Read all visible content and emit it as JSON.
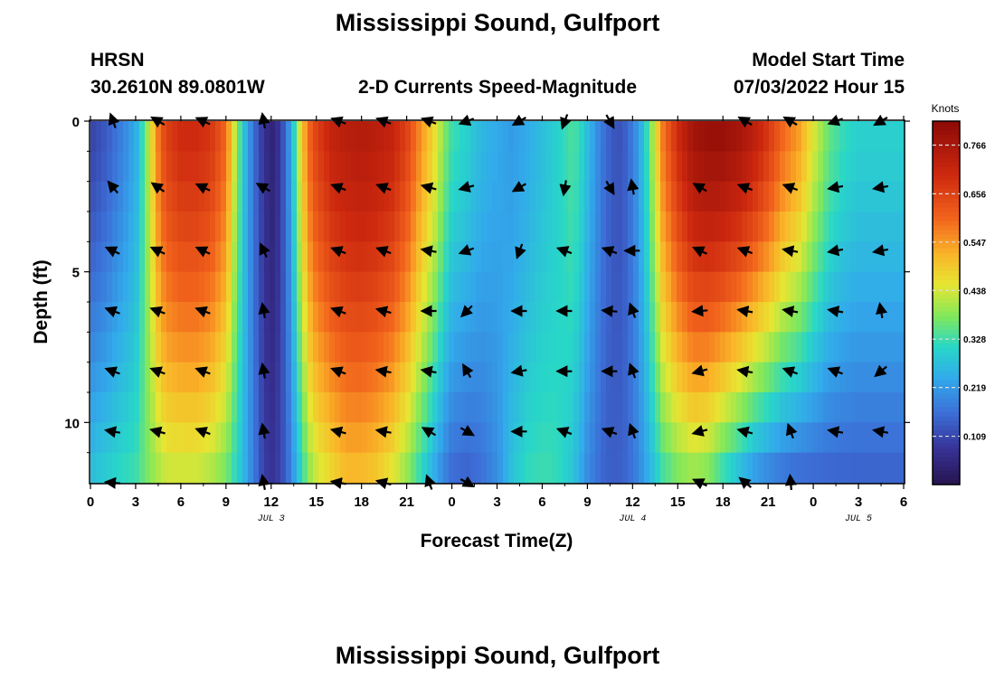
{
  "title": "Mississippi Sound, Gulfport",
  "header": {
    "station": "HRSN",
    "coords": "30.2610N  89.0801W",
    "plot_title": "2-D Currents Speed-Magnitude",
    "model_label": "Model Start Time",
    "model_time": "07/03/2022 Hour 15"
  },
  "chart_data": {
    "type": "heatmap",
    "xlabel": "Forecast Time(Z)",
    "ylabel": "Depth (ft)",
    "x_start": 0,
    "x_end": 54,
    "ylim": [
      0,
      12
    ],
    "x_tick_labels": [
      "0",
      "3",
      "6",
      "9",
      "12",
      "15",
      "18",
      "21",
      "0",
      "3",
      "6",
      "9",
      "12",
      "15",
      "18",
      "21",
      "0",
      "3",
      "6"
    ],
    "y_tick_labels": [
      "0",
      "5",
      "10"
    ],
    "day_labels": [
      {
        "label": "JUL 3",
        "hour": 12
      },
      {
        "label": "JUL 4",
        "hour": 36
      },
      {
        "label": "JUL 5",
        "hour": 51
      }
    ],
    "colorbar": {
      "unit": "Knots",
      "ticks": [
        "0.766",
        "0.656",
        "0.547",
        "0.438",
        "0.328",
        "0.219",
        "0.109"
      ],
      "tick_values": [
        0.766,
        0.656,
        0.547,
        0.438,
        0.328,
        0.219,
        0.109
      ],
      "min": 0.0,
      "max": 0.82
    },
    "speed_profile": {
      "hours": [
        0,
        1,
        2,
        3,
        3.5,
        4,
        4.5,
        5,
        6,
        7,
        8,
        9,
        9.5,
        10,
        10.5,
        11,
        11.5,
        12,
        12.5,
        13,
        13.5,
        14,
        14.5,
        15,
        16,
        17,
        18,
        19,
        20,
        21,
        22,
        23,
        23.5,
        24,
        25,
        26,
        27,
        28,
        29,
        30,
        31,
        32,
        32.5,
        33,
        33.5,
        34,
        34.5,
        35,
        35.5,
        36,
        36.5,
        37,
        37.5,
        38,
        39,
        40,
        41,
        42,
        43,
        44,
        45,
        46,
        47,
        48,
        49,
        50,
        51,
        52,
        53,
        54
      ],
      "surface": [
        0.1,
        0.13,
        0.18,
        0.24,
        0.33,
        0.45,
        0.58,
        0.66,
        0.7,
        0.7,
        0.68,
        0.6,
        0.45,
        0.32,
        0.22,
        0.14,
        0.08,
        0.04,
        0.08,
        0.16,
        0.3,
        0.48,
        0.6,
        0.66,
        0.72,
        0.74,
        0.75,
        0.74,
        0.72,
        0.66,
        0.55,
        0.45,
        0.38,
        0.33,
        0.3,
        0.26,
        0.24,
        0.22,
        0.24,
        0.27,
        0.3,
        0.34,
        0.32,
        0.27,
        0.22,
        0.17,
        0.14,
        0.12,
        0.14,
        0.18,
        0.24,
        0.33,
        0.45,
        0.58,
        0.7,
        0.78,
        0.8,
        0.8,
        0.78,
        0.74,
        0.68,
        0.6,
        0.55,
        0.45,
        0.36,
        0.32,
        0.3,
        0.3,
        0.3,
        0.3
      ],
      "bottom": [
        0.28,
        0.3,
        0.32,
        0.33,
        0.36,
        0.38,
        0.4,
        0.42,
        0.42,
        0.42,
        0.4,
        0.36,
        0.32,
        0.28,
        0.22,
        0.16,
        0.1,
        0.08,
        0.1,
        0.14,
        0.22,
        0.3,
        0.38,
        0.42,
        0.46,
        0.5,
        0.5,
        0.48,
        0.44,
        0.38,
        0.3,
        0.22,
        0.18,
        0.15,
        0.14,
        0.16,
        0.2,
        0.28,
        0.32,
        0.33,
        0.32,
        0.28,
        0.24,
        0.2,
        0.17,
        0.15,
        0.14,
        0.14,
        0.15,
        0.17,
        0.2,
        0.24,
        0.28,
        0.32,
        0.36,
        0.38,
        0.36,
        0.3,
        0.25,
        0.2,
        0.17,
        0.15,
        0.14,
        0.14,
        0.14,
        0.14,
        0.14,
        0.14,
        0.14,
        0.14
      ]
    },
    "vectors": {
      "hours": [
        1.5,
        4.5,
        7.5,
        11.5,
        16.5,
        19.5,
        22.5,
        25,
        28.5,
        31.5,
        34.5,
        36,
        40.5,
        43.5,
        46.5,
        49.5,
        52.5
      ],
      "depths": [
        0,
        2.2,
        4.3,
        6.3,
        8.3,
        10.3,
        12
      ],
      "angles_deg": [
        [
          -110,
          -150,
          -155,
          -100,
          -160,
          -160,
          -160,
          160,
          150,
          110,
          60,
          null,
          null,
          -150,
          -150,
          160,
          150
        ],
        [
          -130,
          -145,
          -155,
          -150,
          -160,
          -160,
          -165,
          165,
          150,
          100,
          60,
          -100,
          -150,
          -160,
          -160,
          170,
          170
        ],
        [
          -155,
          -155,
          -155,
          -115,
          -160,
          -160,
          -170,
          160,
          110,
          -160,
          -160,
          -180,
          -155,
          -160,
          -170,
          170,
          170
        ],
        [
          -160,
          -160,
          -160,
          -100,
          -160,
          -165,
          -180,
          135,
          180,
          180,
          -175,
          -110,
          175,
          -170,
          -170,
          -170,
          -100
        ],
        [
          -160,
          -160,
          -160,
          -100,
          -160,
          -170,
          -170,
          -120,
          170,
          180,
          -180,
          -110,
          165,
          -170,
          -160,
          -160,
          140
        ],
        [
          -170,
          -165,
          -160,
          -100,
          -165,
          -170,
          -150,
          30,
          -180,
          -160,
          -160,
          -110,
          165,
          -165,
          -110,
          -170,
          -170
        ],
        [
          -175,
          null,
          null,
          -100,
          -170,
          -165,
          -110,
          30,
          null,
          null,
          null,
          null,
          -155,
          -140,
          -95,
          null,
          null
        ]
      ]
    }
  }
}
